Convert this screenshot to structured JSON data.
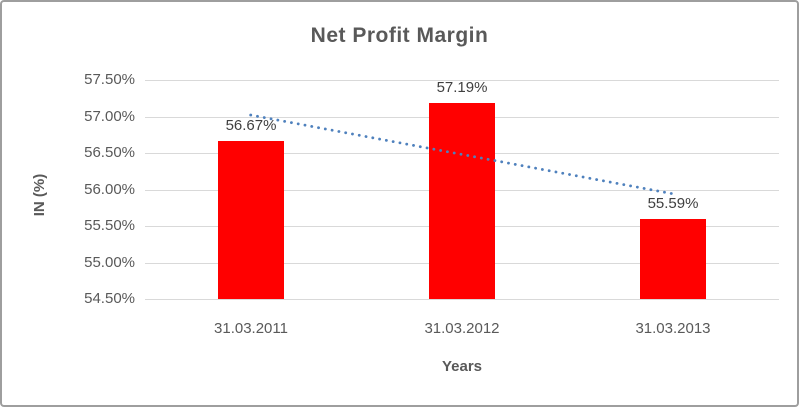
{
  "chart": {
    "title": "Net Profit Margin",
    "y_axis_title": "IN (%)",
    "x_axis_title": "Years"
  },
  "chart_data": {
    "type": "bar",
    "title": "Net Profit Margin",
    "xlabel": "Years",
    "ylabel": "IN (%)",
    "categories": [
      "31.03.2011",
      "31.03.2012",
      "31.03.2013"
    ],
    "values": [
      56.67,
      57.19,
      55.59
    ],
    "data_labels": [
      "56.67%",
      "57.19%",
      "55.59%"
    ],
    "ylim": [
      54.5,
      57.5
    ],
    "ytick_labels": [
      "57.50%",
      "57.00%",
      "56.50%",
      "56.00%",
      "55.50%",
      "55.00%",
      "54.50%"
    ],
    "ytick_values": [
      57.5,
      57.0,
      56.5,
      56.0,
      55.5,
      55.0,
      54.5
    ],
    "grid": true,
    "legend": "none",
    "bar_color": "#ff0000",
    "gridline_color": "#d9d9d9",
    "text_color": "#595959",
    "label_color": "#404040",
    "trendline": {
      "type": "linear",
      "style": "dotted",
      "color": "#4f81bd",
      "start_value": 57.02,
      "end_value": 55.94
    }
  }
}
